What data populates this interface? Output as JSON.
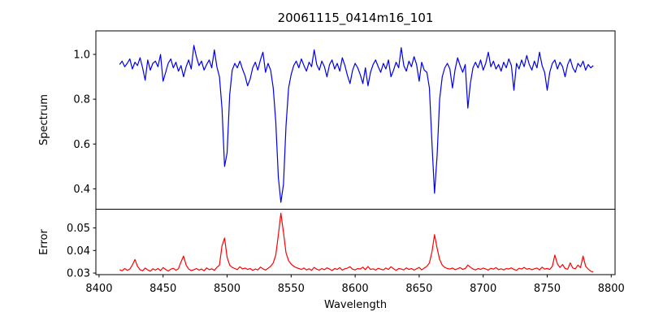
{
  "figure": {
    "background": "#ffffff",
    "spine_color": "#000000",
    "tick_color": "#000000"
  },
  "chart_data": {
    "type": "line",
    "title": "20061115_0414m16_101",
    "xlabel": "Wavelength",
    "xlim": [
      8397.5,
      8803.0
    ],
    "x_tick_values": [
      8400,
      8450,
      8500,
      8550,
      8600,
      8650,
      8700,
      8750,
      8800
    ],
    "x_tick_labels": [
      "8400",
      "8450",
      "8500",
      "8550",
      "8600",
      "8650",
      "8700",
      "8750",
      "8800"
    ],
    "x_start": 8416,
    "x_step": 2,
    "grid": false,
    "legend": "none",
    "panels": [
      {
        "name": "spectrum",
        "ylabel": "Spectrum",
        "ylim": [
          0.309,
          1.105
        ],
        "y_tick_values": [
          0.4,
          0.6,
          0.8,
          1.0
        ],
        "y_tick_labels": [
          "0.4",
          "0.6",
          "0.8",
          "1.0"
        ],
        "color": "#0000ee",
        "features_note": "absorption lines at 8498 (0.50), 8542 (0.34), 8662 (0.38), dips 8688 (0.76), 8750 (0.84)",
        "values": [
          0.955,
          0.97,
          0.945,
          0.96,
          0.98,
          0.935,
          0.965,
          0.95,
          0.985,
          0.94,
          0.885,
          0.975,
          0.93,
          0.96,
          0.97,
          0.945,
          1.0,
          0.88,
          0.92,
          0.96,
          0.98,
          0.94,
          0.965,
          0.925,
          0.95,
          0.9,
          0.945,
          0.975,
          0.935,
          1.04,
          0.99,
          0.95,
          0.97,
          0.93,
          0.955,
          0.975,
          0.94,
          1.02,
          0.945,
          0.9,
          0.76,
          0.5,
          0.56,
          0.82,
          0.93,
          0.96,
          0.94,
          0.97,
          0.935,
          0.905,
          0.86,
          0.89,
          0.94,
          0.965,
          0.93,
          0.975,
          1.01,
          0.92,
          0.96,
          0.93,
          0.85,
          0.7,
          0.45,
          0.34,
          0.42,
          0.68,
          0.85,
          0.91,
          0.95,
          0.97,
          0.94,
          0.98,
          0.95,
          0.925,
          0.965,
          0.945,
          1.02,
          0.955,
          0.93,
          0.97,
          0.945,
          0.9,
          0.955,
          0.975,
          0.935,
          0.96,
          0.925,
          0.985,
          0.95,
          0.905,
          0.87,
          0.93,
          0.96,
          0.94,
          0.91,
          0.87,
          0.94,
          0.86,
          0.92,
          0.955,
          0.975,
          0.945,
          0.92,
          0.96,
          0.935,
          0.975,
          0.9,
          0.93,
          0.965,
          0.94,
          1.03,
          0.95,
          0.925,
          0.97,
          0.945,
          0.99,
          0.955,
          0.88,
          0.965,
          0.93,
          0.92,
          0.85,
          0.6,
          0.38,
          0.55,
          0.8,
          0.9,
          0.94,
          0.96,
          0.935,
          0.85,
          0.93,
          0.985,
          0.95,
          0.92,
          0.955,
          0.76,
          0.87,
          0.94,
          0.965,
          0.94,
          0.975,
          0.93,
          0.96,
          1.01,
          0.945,
          0.97,
          0.935,
          0.955,
          0.925,
          0.965,
          0.94,
          0.98,
          0.95,
          0.84,
          0.96,
          0.935,
          0.975,
          0.945,
          0.995,
          0.955,
          0.93,
          0.97,
          0.94,
          1.01,
          0.95,
          0.92,
          0.84,
          0.92,
          0.96,
          0.975,
          0.935,
          0.965,
          0.945,
          0.9,
          0.955,
          0.98,
          0.94,
          0.92,
          0.96,
          0.945,
          0.97,
          0.93,
          0.955,
          0.94,
          0.95
        ]
      },
      {
        "name": "error",
        "ylabel": "Error",
        "ylim": [
          0.0293,
          0.0583
        ],
        "y_tick_values": [
          0.03,
          0.04,
          0.05
        ],
        "y_tick_labels": [
          "0.03",
          "0.04",
          "0.05"
        ],
        "color": "#ff0000",
        "features_note": "baseline ~0.0315, peaks at 8498 (0.0455), 8542 (0.0565), 8662 (0.047)",
        "values": [
          0.0315,
          0.031,
          0.032,
          0.0312,
          0.0318,
          0.0335,
          0.036,
          0.033,
          0.0315,
          0.031,
          0.0322,
          0.0314,
          0.0308,
          0.0319,
          0.0313,
          0.032,
          0.0311,
          0.0324,
          0.0316,
          0.0309,
          0.0317,
          0.0321,
          0.0312,
          0.0319,
          0.035,
          0.0375,
          0.0335,
          0.0318,
          0.0311,
          0.0315,
          0.032,
          0.0313,
          0.0318,
          0.031,
          0.0323,
          0.0315,
          0.0319,
          0.0312,
          0.0325,
          0.0335,
          0.042,
          0.0455,
          0.037,
          0.0335,
          0.0325,
          0.032,
          0.0315,
          0.0328,
          0.0318,
          0.0322,
          0.0316,
          0.032,
          0.0312,
          0.0318,
          0.0314,
          0.0326,
          0.0319,
          0.0313,
          0.0321,
          0.033,
          0.0345,
          0.038,
          0.047,
          0.0565,
          0.048,
          0.039,
          0.0355,
          0.034,
          0.033,
          0.0324,
          0.032,
          0.0316,
          0.0322,
          0.0314,
          0.0319,
          0.0312,
          0.0325,
          0.0317,
          0.0313,
          0.032,
          0.0315,
          0.0323,
          0.0318,
          0.0311,
          0.032,
          0.0316,
          0.0324,
          0.0313,
          0.0319,
          0.0322,
          0.0328,
          0.0317,
          0.0314,
          0.032,
          0.0318,
          0.0326,
          0.0315,
          0.0329,
          0.0316,
          0.0319,
          0.0313,
          0.0321,
          0.0317,
          0.0314,
          0.0322,
          0.0316,
          0.0328,
          0.0319,
          0.0312,
          0.032,
          0.0318,
          0.0314,
          0.0323,
          0.0316,
          0.032,
          0.0313,
          0.0319,
          0.0325,
          0.0314,
          0.0322,
          0.033,
          0.0345,
          0.0395,
          0.047,
          0.041,
          0.036,
          0.0335,
          0.0325,
          0.032,
          0.0318,
          0.0322,
          0.0315,
          0.0319,
          0.0324,
          0.0316,
          0.032,
          0.0335,
          0.0326,
          0.0318,
          0.0314,
          0.032,
          0.0316,
          0.0322,
          0.0318,
          0.0313,
          0.0321,
          0.0317,
          0.0324,
          0.0315,
          0.0319,
          0.0314,
          0.032,
          0.0318,
          0.0323,
          0.0316,
          0.0312,
          0.0321,
          0.0318,
          0.0325,
          0.0317,
          0.032,
          0.0315,
          0.0319,
          0.0322,
          0.0314,
          0.0326,
          0.0318,
          0.032,
          0.0316,
          0.033,
          0.038,
          0.034,
          0.0325,
          0.0338,
          0.032,
          0.0317,
          0.0345,
          0.0322,
          0.0319,
          0.0335,
          0.0324,
          0.0375,
          0.033,
          0.0318,
          0.0308,
          0.0305
        ]
      }
    ]
  }
}
